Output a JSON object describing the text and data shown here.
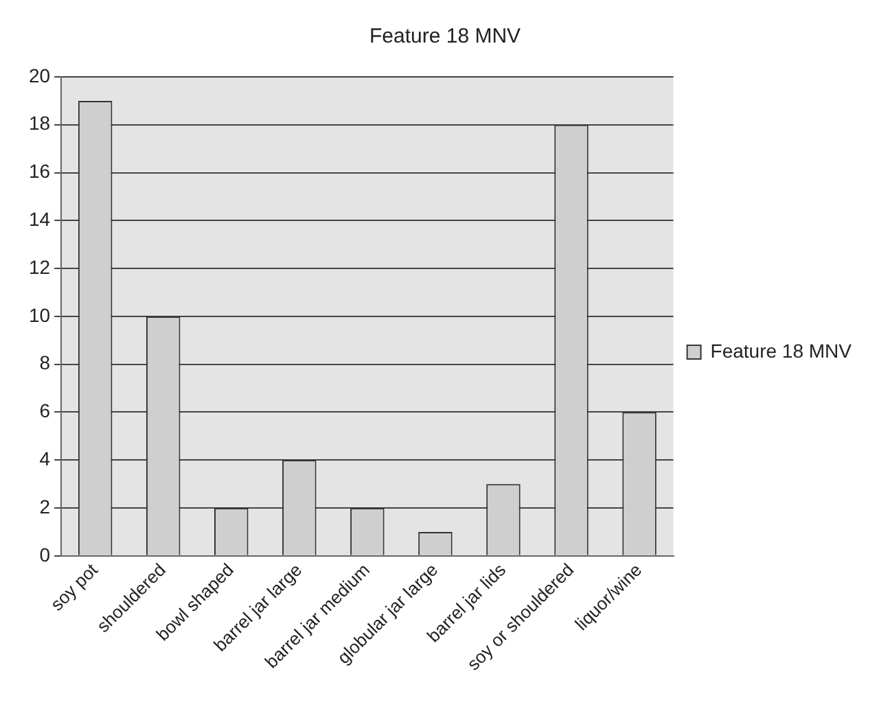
{
  "chart_data": {
    "type": "bar",
    "title": "Feature 18 MNV",
    "categories": [
      "soy pot",
      "shouldered",
      "bowl shaped",
      "barrel jar large",
      "barrel jar medium",
      "globular jar large",
      "barrel jar lids",
      "soy or shouldered",
      "liquor/wine"
    ],
    "series": [
      {
        "name": "Feature 18 MNV",
        "color": "#cfcfcf",
        "values": [
          19,
          10,
          2,
          4,
          2,
          1,
          3,
          18,
          6
        ]
      }
    ],
    "ylim": [
      0,
      20
    ],
    "yticks": [
      0,
      2,
      4,
      6,
      8,
      10,
      12,
      14,
      16,
      18,
      20
    ],
    "grid": "y",
    "legend": "right"
  }
}
